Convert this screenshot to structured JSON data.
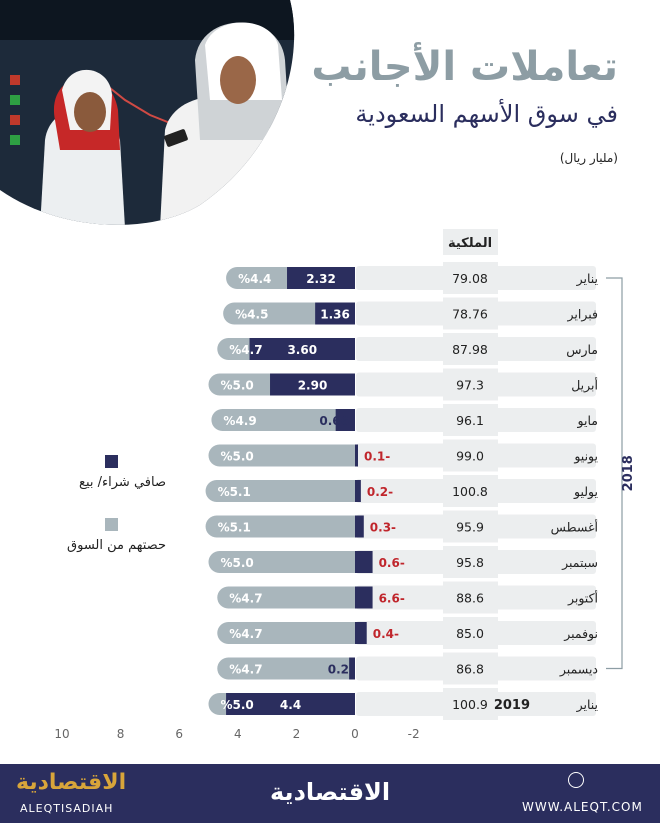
{
  "header": {
    "title": "تعاملات الأجانب",
    "subtitle": "في سوق الأسهم السعودية",
    "unit": "(مليار ريال)"
  },
  "legend": {
    "net": "صافي شراء/ بيع",
    "share": "حصتهم من السوق"
  },
  "colors": {
    "net": "#2b2e5e",
    "share": "#a9b6bc",
    "negative": "#c0262c",
    "row_bg": "#eceeef",
    "title": "#8d9da4"
  },
  "chart_data": {
    "type": "bar",
    "owned_header": "الملكية",
    "year_label_2018": "2018",
    "x_ticks": [
      "10",
      "8",
      "6",
      "4",
      "2",
      "0",
      "-2"
    ],
    "xlim": [
      -2,
      10
    ],
    "rows": [
      {
        "month": "يناير",
        "owned": "79.08",
        "net": 2.32,
        "net_label": "2.32",
        "share": 4.4,
        "share_label": "%4.4"
      },
      {
        "month": "فبراير",
        "owned": "78.76",
        "net": 1.36,
        "net_label": "1.36",
        "share": 4.5,
        "share_label": "%4.5"
      },
      {
        "month": "مارس",
        "owned": "87.98",
        "net": 3.6,
        "net_label": "3.60",
        "share": 4.7,
        "share_label": "%4.7"
      },
      {
        "month": "أبريل",
        "owned": "97.3",
        "net": 2.9,
        "net_label": "2.90",
        "share": 5.0,
        "share_label": "%5.0"
      },
      {
        "month": "مايو",
        "owned": "96.1",
        "net": 0.66,
        "net_label": "0.66",
        "share": 4.9,
        "share_label": "%4.9"
      },
      {
        "month": "يونيو",
        "owned": "99.0",
        "net": -0.1,
        "net_label": "0.1-",
        "share": 5.0,
        "share_label": "%5.0"
      },
      {
        "month": "يوليو",
        "owned": "100.8",
        "net": -0.2,
        "net_label": "0.2-",
        "share": 5.1,
        "share_label": "%5.1"
      },
      {
        "month": "أغسطس",
        "owned": "95.9",
        "net": -0.3,
        "net_label": "0.3-",
        "share": 5.1,
        "share_label": "%5.1"
      },
      {
        "month": "سبتمبر",
        "owned": "95.8",
        "net": -0.6,
        "net_label": "0.6-",
        "share": 5.0,
        "share_label": "%5.0"
      },
      {
        "month": "أكتوبر",
        "owned": "88.6",
        "net": -6.6,
        "net_label": "6.6-",
        "share": 4.7,
        "share_label": "%4.7"
      },
      {
        "month": "نوفمبر",
        "owned": "85.0",
        "net": -0.4,
        "net_label": "0.4-",
        "share": 4.7,
        "share_label": "%4.7"
      },
      {
        "month": "ديسمبر",
        "owned": "86.8",
        "net": 0.2,
        "net_label": "0.2",
        "share": 4.7,
        "share_label": "%4.7"
      },
      {
        "month": "يناير",
        "year": "2019",
        "owned": "100.9",
        "net": 4.4,
        "net_label": "4.4",
        "share": 5.0,
        "share_label": "%5.0"
      }
    ]
  },
  "footer": {
    "logo_ar": "الاقتصادية",
    "logo_en": "ALEQTISADIAH",
    "center_logo": "الاقتصادية",
    "url": "WWW.ALEQT.COM"
  }
}
